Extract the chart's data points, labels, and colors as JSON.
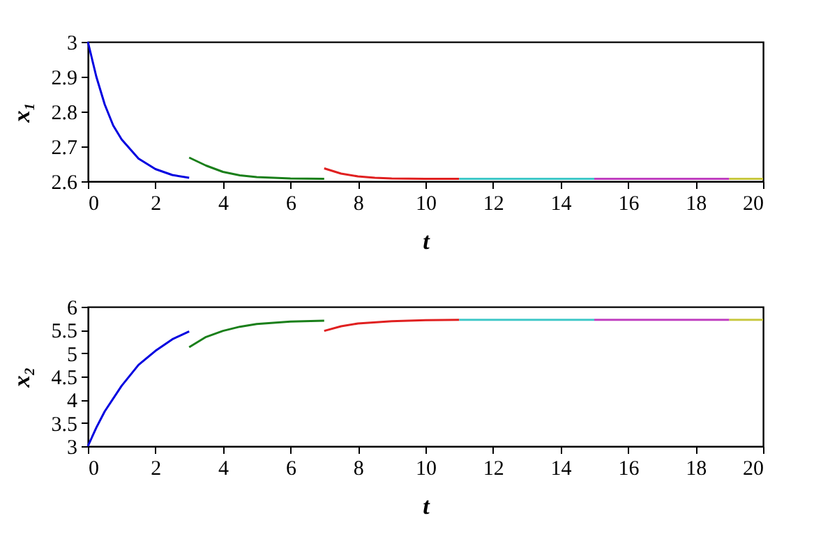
{
  "chart_data": [
    {
      "type": "line",
      "xlabel": "t",
      "ylabel": "x₁",
      "xlim": [
        0,
        20
      ],
      "ylim": [
        2.6,
        3
      ],
      "xticks": [
        0,
        2,
        4,
        6,
        8,
        10,
        12,
        14,
        16,
        18,
        20
      ],
      "yticks": [
        2.6,
        2.7,
        2.8,
        2.9,
        3
      ],
      "grid": false,
      "marker": "none",
      "line_style": "solid",
      "series": [
        {
          "color": "#0000e0",
          "x": [
            0,
            0.25,
            0.5,
            0.75,
            1,
            1.5,
            2,
            2.5,
            3
          ],
          "values": [
            3.0,
            2.9,
            2.82,
            2.76,
            2.72,
            2.665,
            2.635,
            2.618,
            2.61
          ]
        },
        {
          "color": "#1a7f1a",
          "x": [
            3,
            3.5,
            4,
            4.5,
            5,
            6,
            7
          ],
          "values": [
            2.668,
            2.645,
            2.627,
            2.617,
            2.612,
            2.608,
            2.607
          ]
        },
        {
          "color": "#e02020",
          "x": [
            7,
            7.5,
            8,
            8.5,
            9,
            10,
            11
          ],
          "values": [
            2.637,
            2.622,
            2.614,
            2.61,
            2.608,
            2.607,
            2.607
          ]
        },
        {
          "color": "#40c8c8",
          "x": [
            11,
            13,
            15
          ],
          "values": [
            2.607,
            2.607,
            2.607
          ]
        },
        {
          "color": "#c040c0",
          "x": [
            15,
            17,
            19
          ],
          "values": [
            2.607,
            2.607,
            2.607
          ]
        },
        {
          "color": "#c8c840",
          "x": [
            19,
            20
          ],
          "values": [
            2.607,
            2.607
          ]
        }
      ]
    },
    {
      "type": "line",
      "xlabel": "t",
      "ylabel": "x₂",
      "xlim": [
        0,
        20
      ],
      "ylim": [
        3,
        6
      ],
      "xticks": [
        0,
        2,
        4,
        6,
        8,
        10,
        12,
        14,
        16,
        18,
        20
      ],
      "yticks": [
        3,
        3.5,
        4,
        4.5,
        5,
        5.5,
        6
      ],
      "grid": false,
      "marker": "none",
      "line_style": "solid",
      "series": [
        {
          "color": "#0000e0",
          "x": [
            0,
            0.25,
            0.5,
            1,
            1.5,
            2,
            2.5,
            3
          ],
          "values": [
            3.0,
            3.4,
            3.75,
            4.3,
            4.75,
            5.05,
            5.3,
            5.47
          ]
        },
        {
          "color": "#1a7f1a",
          "x": [
            3,
            3.5,
            4,
            4.5,
            5,
            6,
            7
          ],
          "values": [
            5.13,
            5.35,
            5.48,
            5.57,
            5.63,
            5.68,
            5.7
          ]
        },
        {
          "color": "#e02020",
          "x": [
            7,
            7.5,
            8,
            9,
            10,
            11
          ],
          "values": [
            5.48,
            5.58,
            5.64,
            5.69,
            5.71,
            5.72
          ]
        },
        {
          "color": "#40c8c8",
          "x": [
            11,
            13,
            15
          ],
          "values": [
            5.72,
            5.72,
            5.72
          ]
        },
        {
          "color": "#c040c0",
          "x": [
            15,
            17,
            19
          ],
          "values": [
            5.72,
            5.72,
            5.72
          ]
        },
        {
          "color": "#c8c840",
          "x": [
            19,
            20
          ],
          "values": [
            5.72,
            5.72
          ]
        }
      ]
    }
  ]
}
